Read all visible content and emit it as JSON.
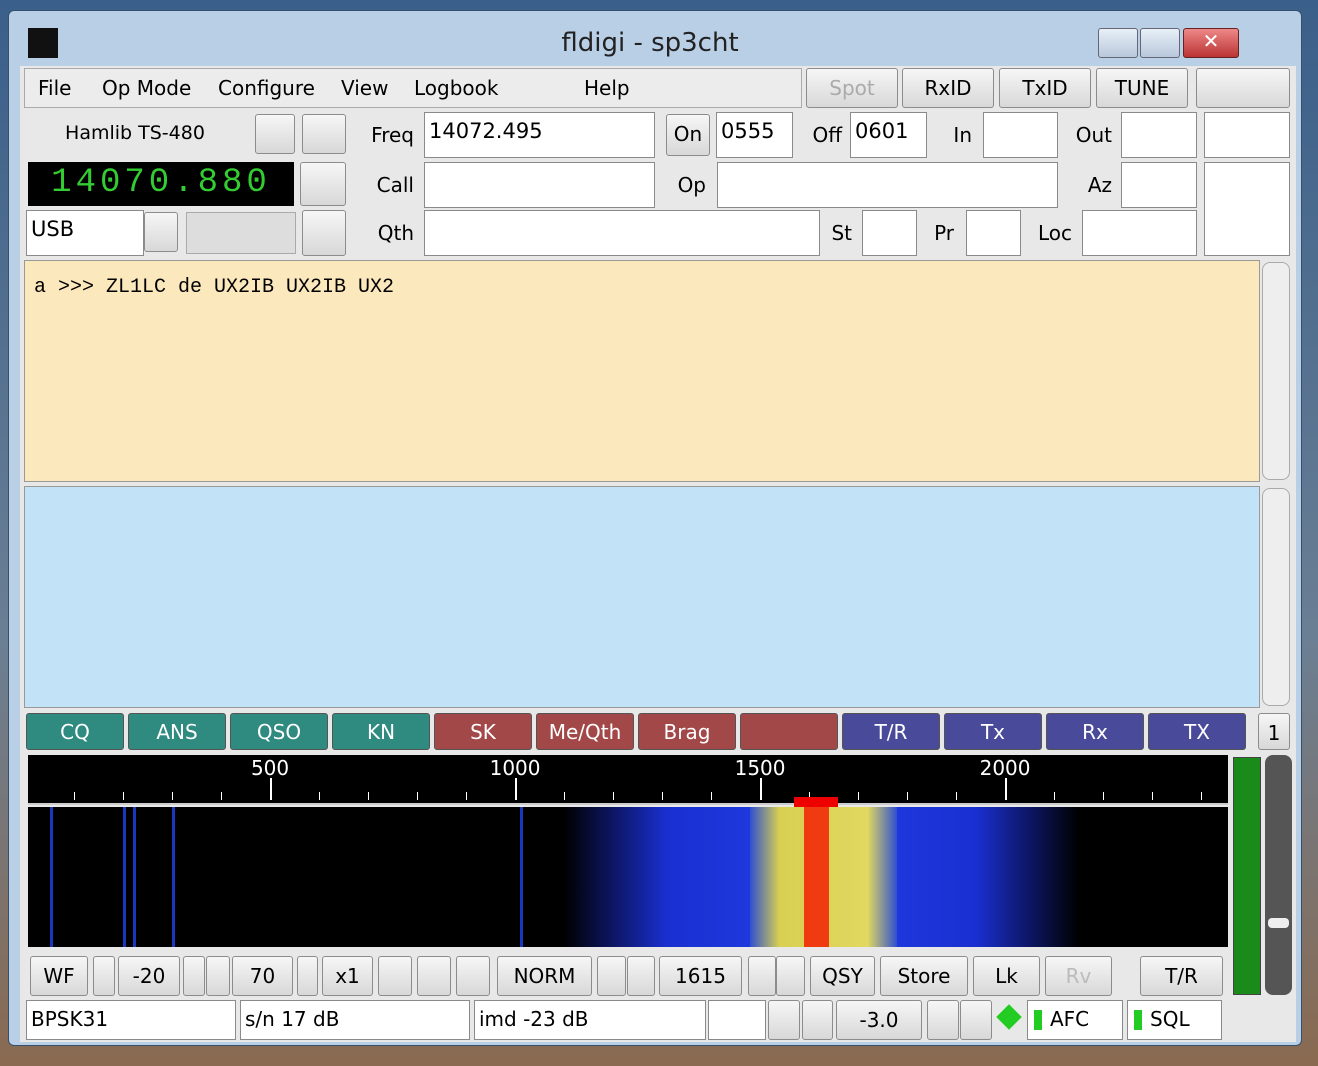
{
  "window": {
    "title": "fldigi - sp3cht"
  },
  "menu": [
    "File",
    "Op Mode",
    "Configure",
    "View",
    "Logbook",
    "Help"
  ],
  "toggles": [
    "Spot",
    "RxID",
    "TxID",
    "TUNE"
  ],
  "rig": {
    "name": "Hamlib TS-480",
    "frequency": "14070.880",
    "mode": "USB"
  },
  "log": [
    {
      "label": "Freq",
      "value": "14072.495"
    },
    {
      "label": "On",
      "value": "0555"
    },
    {
      "label": "Off",
      "value": "0601"
    },
    {
      "label": "In"
    },
    {
      "label": "Out"
    },
    {
      "label": "Call"
    },
    {
      "label": "Op"
    },
    {
      "label": "Az"
    },
    {
      "label": "Qth"
    },
    {
      "label": "St"
    },
    {
      "label": "Pr"
    },
    {
      "label": "Loc"
    }
  ],
  "rx_text": "a >>> ZL1LC de UX2IB UX2IB UX2",
  "macros": [
    {
      "label": "CQ",
      "color": "#2f8a80"
    },
    {
      "label": "ANS",
      "color": "#2f8a80"
    },
    {
      "label": "QSO",
      "color": "#2f8a80"
    },
    {
      "label": "KN",
      "color": "#2f8a80"
    },
    {
      "label": "SK",
      "color": "#a24848"
    },
    {
      "label": "Me/Qth",
      "color": "#a24848"
    },
    {
      "label": "Brag",
      "color": "#a24848"
    },
    {
      "color": "#a24848"
    },
    {
      "label": "T/R",
      "color": "#4a4a9a"
    },
    {
      "label": "Tx",
      "color": "#4a4a9a"
    },
    {
      "label": "Rx",
      "color": "#4a4a9a"
    },
    {
      "label": "TX",
      "color": "#4a4a9a"
    }
  ],
  "macro_bank": "1",
  "waterfall": {
    "xlim": [
      6,
      2455
    ],
    "xticks": [
      500,
      1000,
      1500,
      2000
    ]
  },
  "controls": [
    "WF",
    "-20",
    "70",
    "x1",
    "NORM",
    "1615",
    "QSY",
    "Store",
    "Lk",
    "Rv",
    "T/R"
  ],
  "status": [
    "BPSK31",
    "s/n 17 dB",
    "imd -23 dB",
    "-3.0",
    "AFC",
    "SQL"
  ]
}
